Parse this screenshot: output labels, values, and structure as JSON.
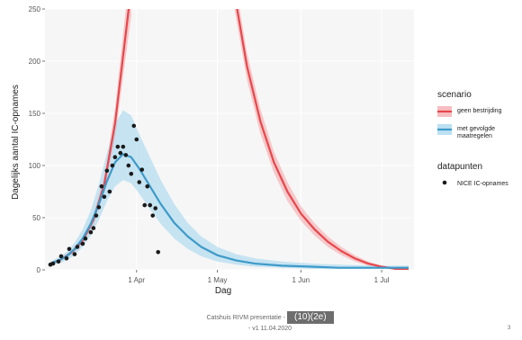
{
  "chart_data": {
    "type": "line",
    "xlabel": "Dag",
    "ylabel": "Dagelijks aantal IC-opnames",
    "ylim": [
      0,
      250
    ],
    "xlim": [
      "2020-02-27",
      "2020-07-13"
    ],
    "y_ticks": [
      0,
      50,
      100,
      150,
      200,
      250
    ],
    "x_ticks": [
      {
        "label": "1 Apr",
        "date": "2020-04-01"
      },
      {
        "label": "1 May",
        "date": "2020-05-01"
      },
      {
        "label": "1 Jun",
        "date": "2020-06-01"
      },
      {
        "label": "1 Jul",
        "date": "2020-07-01"
      }
    ],
    "grid": true,
    "legend_placement": "right",
    "legend": {
      "scenario_title": "scenario",
      "datapoints_title": "datapunten",
      "datapoints_label": "NICE IC-opnames"
    },
    "series": [
      {
        "name": "geen bestrijding",
        "color": "#e8474c",
        "band_color": "#f4a3a6",
        "x": [
          "2020-02-29",
          "2020-03-04",
          "2020-03-08",
          "2020-03-12",
          "2020-03-16",
          "2020-03-20",
          "2020-03-24",
          "2020-03-27",
          "2020-03-30"
        ],
        "y": [
          6,
          10,
          17,
          28,
          48,
          82,
          140,
          205,
          270
        ],
        "lower": [
          5,
          9,
          15,
          25,
          43,
          74,
          126,
          185,
          243
        ],
        "upper": [
          7,
          11,
          19,
          31,
          53,
          90,
          154,
          226,
          297
        ]
      },
      {
        "name": "geen bestrijding",
        "color": "#e8474c",
        "band_color": "#f4a3a6",
        "x": [
          "2020-05-07",
          "2020-05-12",
          "2020-05-17",
          "2020-05-22",
          "2020-05-27",
          "2020-06-01",
          "2020-06-06",
          "2020-06-11",
          "2020-06-16",
          "2020-06-21",
          "2020-06-26",
          "2020-07-01",
          "2020-07-06",
          "2020-07-11"
        ],
        "y": [
          270,
          195,
          142,
          103,
          75,
          54,
          39,
          27,
          18,
          11,
          6,
          3,
          1,
          1
        ],
        "lower": [
          255,
          182,
          130,
          93,
          66,
          47,
          33,
          22,
          14,
          8,
          4,
          2,
          0,
          0
        ],
        "upper": [
          285,
          208,
          154,
          113,
          84,
          61,
          45,
          32,
          22,
          14,
          8,
          4,
          2,
          1
        ]
      },
      {
        "name": "met gevolgde maatregelen",
        "color": "#3d9ac9",
        "band_color": "#9ed4ec",
        "x": [
          "2020-02-29",
          "2020-03-03",
          "2020-03-06",
          "2020-03-09",
          "2020-03-12",
          "2020-03-15",
          "2020-03-18",
          "2020-03-21",
          "2020-03-24",
          "2020-03-27",
          "2020-03-30",
          "2020-04-02",
          "2020-04-06",
          "2020-04-10",
          "2020-04-15",
          "2020-04-20",
          "2020-04-25",
          "2020-05-01",
          "2020-05-08",
          "2020-05-15",
          "2020-05-25",
          "2020-06-05",
          "2020-06-15",
          "2020-07-01",
          "2020-07-11"
        ],
        "y": [
          6,
          9,
          13,
          20,
          30,
          44,
          63,
          85,
          103,
          111,
          108,
          97,
          80,
          63,
          45,
          32,
          22,
          14,
          9,
          6,
          4,
          3,
          2,
          2,
          2
        ],
        "lower": [
          4,
          6,
          9,
          14,
          22,
          33,
          48,
          66,
          80,
          86,
          83,
          73,
          58,
          44,
          30,
          20,
          13,
          8,
          5,
          3,
          2,
          1,
          1,
          1,
          1
        ],
        "upper": [
          8,
          12,
          17,
          26,
          39,
          57,
          82,
          112,
          140,
          153,
          148,
          130,
          108,
          86,
          63,
          45,
          32,
          22,
          15,
          11,
          8,
          6,
          5,
          4,
          4
        ]
      }
    ],
    "points": {
      "name": "NICE IC-opnames",
      "x": [
        "2020-02-29",
        "2020-03-01",
        "2020-03-03",
        "2020-03-04",
        "2020-03-06",
        "2020-03-07",
        "2020-03-09",
        "2020-03-10",
        "2020-03-12",
        "2020-03-13",
        "2020-03-15",
        "2020-03-16",
        "2020-03-17",
        "2020-03-18",
        "2020-03-19",
        "2020-03-20",
        "2020-03-21",
        "2020-03-22",
        "2020-03-23",
        "2020-03-24",
        "2020-03-25",
        "2020-03-26",
        "2020-03-27",
        "2020-03-28",
        "2020-03-29",
        "2020-03-30",
        "2020-03-31",
        "2020-04-01",
        "2020-04-02",
        "2020-04-03",
        "2020-04-04",
        "2020-04-05",
        "2020-04-06",
        "2020-04-07",
        "2020-04-08",
        "2020-04-09"
      ],
      "y": [
        5,
        6,
        8,
        13,
        11,
        20,
        15,
        22,
        25,
        30,
        36,
        40,
        52,
        60,
        80,
        70,
        95,
        75,
        100,
        108,
        118,
        112,
        118,
        110,
        100,
        92,
        138,
        125,
        84,
        96,
        62,
        80,
        62,
        52,
        59,
        17
      ]
    }
  },
  "footer": {
    "line1": "Catshuis RIVM presentatie -",
    "redaction": "(10)(2e)",
    "line2": "- v1 11.04.2020",
    "page_number": "3"
  }
}
